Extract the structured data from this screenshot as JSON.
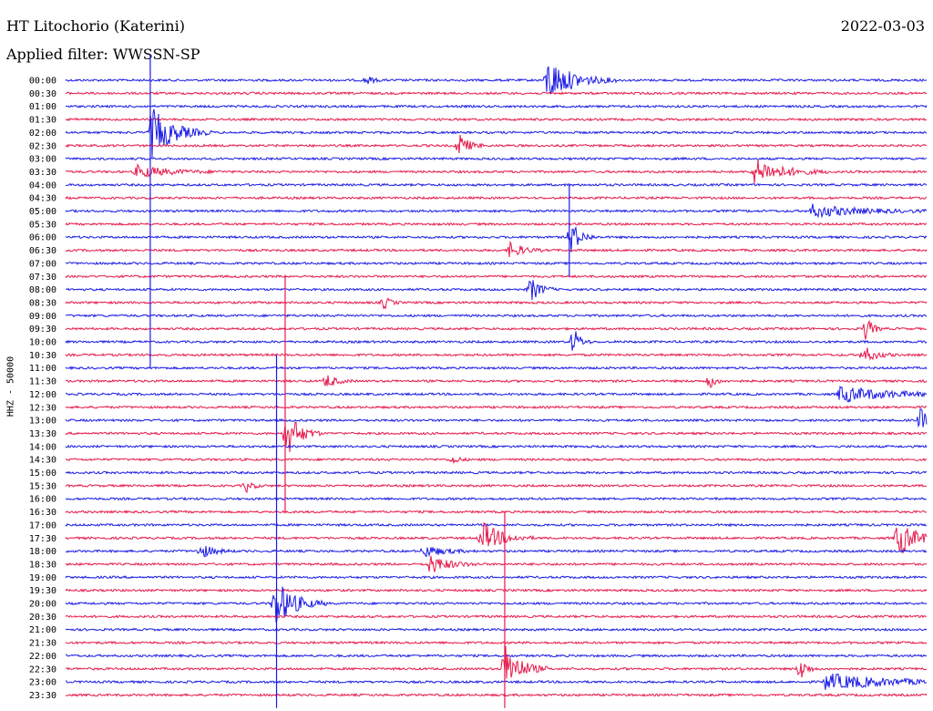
{
  "header": {
    "station": "HT Litochorio (Katerini)",
    "date": "2022-03-03",
    "filter": "Applied filter: WWSSN-SP"
  },
  "axis": {
    "channel_label": "HHZ - 50000"
  },
  "colors": {
    "blue": "#1a1ae6",
    "red": "#e6194b",
    "text": "#000000",
    "background": "#ffffff"
  },
  "chart_data": {
    "type": "line",
    "title": "HT Litochorio (Katerini)",
    "ylabel": "HHZ - 50000",
    "rows": [
      "00:00",
      "00:30",
      "01:00",
      "01:30",
      "02:00",
      "02:30",
      "03:00",
      "03:30",
      "04:00",
      "04:30",
      "05:00",
      "05:30",
      "06:00",
      "06:30",
      "07:00",
      "07:30",
      "08:00",
      "08:30",
      "09:00",
      "09:30",
      "10:00",
      "10:30",
      "11:00",
      "11:30",
      "12:00",
      "12:30",
      "13:00",
      "13:30",
      "14:00",
      "14:30",
      "15:00",
      "15:30",
      "16:00",
      "16:30",
      "17:00",
      "17:30",
      "18:00",
      "18:30",
      "19:00",
      "19:30",
      "20:00",
      "20:30",
      "21:00",
      "21:30",
      "22:00",
      "22:30",
      "23:00",
      "23:30"
    ],
    "row_colors": [
      "blue",
      "red"
    ],
    "row_duration_minutes": 30,
    "events": [
      {
        "row": 0,
        "minute": 16.8,
        "amp": 1.0,
        "dur": 0.8
      },
      {
        "row": 0,
        "minute": 10.5,
        "amp": 0.2,
        "dur": 0.2
      },
      {
        "row": 4,
        "minute": 3.0,
        "amp": 1.2,
        "dur": 0.7
      },
      {
        "row": 5,
        "minute": 13.7,
        "amp": 0.6,
        "dur": 0.3
      },
      {
        "row": 7,
        "minute": 2.5,
        "amp": 0.3,
        "dur": 1.0
      },
      {
        "row": 7,
        "minute": 24.0,
        "amp": 0.6,
        "dur": 0.9
      },
      {
        "row": 10,
        "minute": 26.0,
        "amp": 0.3,
        "dur": 1.5
      },
      {
        "row": 12,
        "minute": 17.6,
        "amp": 0.8,
        "dur": 0.3
      },
      {
        "row": 13,
        "minute": 15.5,
        "amp": 0.4,
        "dur": 0.4
      },
      {
        "row": 16,
        "minute": 16.2,
        "amp": 0.6,
        "dur": 0.3
      },
      {
        "row": 17,
        "minute": 11.1,
        "amp": 0.3,
        "dur": 0.2
      },
      {
        "row": 19,
        "minute": 27.9,
        "amp": 0.6,
        "dur": 0.2
      },
      {
        "row": 20,
        "minute": 17.7,
        "amp": 0.7,
        "dur": 0.2
      },
      {
        "row": 21,
        "minute": 27.8,
        "amp": 0.4,
        "dur": 0.4
      },
      {
        "row": 23,
        "minute": 9.1,
        "amp": 0.35,
        "dur": 0.3
      },
      {
        "row": 23,
        "minute": 22.4,
        "amp": 0.4,
        "dur": 0.2
      },
      {
        "row": 24,
        "minute": 27.0,
        "amp": 0.4,
        "dur": 1.5
      },
      {
        "row": 26,
        "minute": 29.8,
        "amp": 0.6,
        "dur": 0.2
      },
      {
        "row": 27,
        "minute": 7.7,
        "amp": 1.2,
        "dur": 0.4
      },
      {
        "row": 29,
        "minute": 13.5,
        "amp": 0.2,
        "dur": 0.2
      },
      {
        "row": 31,
        "minute": 6.3,
        "amp": 0.3,
        "dur": 0.2
      },
      {
        "row": 35,
        "minute": 14.5,
        "amp": 0.8,
        "dur": 0.6
      },
      {
        "row": 35,
        "minute": 29.0,
        "amp": 0.9,
        "dur": 0.6
      },
      {
        "row": 36,
        "minute": 4.7,
        "amp": 0.35,
        "dur": 0.4
      },
      {
        "row": 36,
        "minute": 12.5,
        "amp": 0.3,
        "dur": 0.6
      },
      {
        "row": 37,
        "minute": 12.7,
        "amp": 0.45,
        "dur": 0.6
      },
      {
        "row": 40,
        "minute": 7.3,
        "amp": 1.2,
        "dur": 0.6
      },
      {
        "row": 45,
        "minute": 15.3,
        "amp": 1.2,
        "dur": 0.5
      },
      {
        "row": 45,
        "minute": 25.6,
        "amp": 0.6,
        "dur": 0.2
      },
      {
        "row": 46,
        "minute": 26.5,
        "amp": 0.4,
        "dur": 2.0
      }
    ]
  }
}
